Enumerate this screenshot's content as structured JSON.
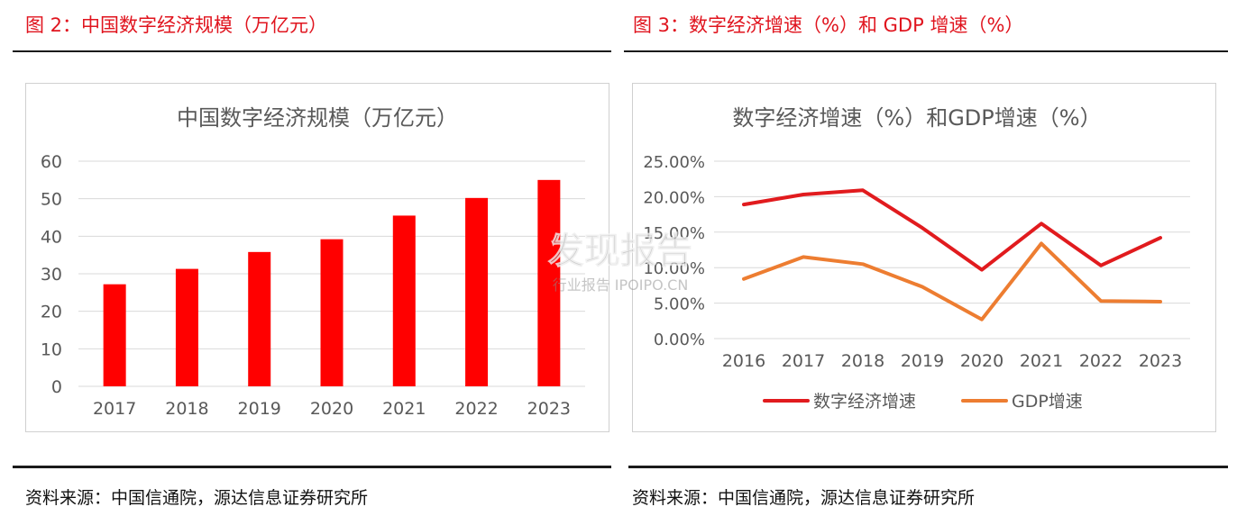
{
  "figures": [
    {
      "heading": "图 2：中国数字经济规模（万亿元）",
      "source": "资料来源：中国信通院，源达信息证券研究所"
    },
    {
      "heading": "图 3：数字经济增速（%）和 GDP 增速（%）",
      "source": "资料来源：中国信通院，源达信息证券研究所"
    }
  ],
  "watermark": {
    "main": "发现报告",
    "sub": "行业报告 IPOIPO.CN"
  },
  "colors": {
    "heading": "#e0141e",
    "bar": "#ff0000",
    "line_digital": "#e11b1e",
    "line_gdp": "#ed7d31",
    "grid": "#d9d9d9",
    "axis_text": "#595959"
  },
  "chart_data": [
    {
      "type": "bar",
      "title": "中国数字经济规模（万亿元）",
      "categories": [
        "2017",
        "2018",
        "2019",
        "2020",
        "2021",
        "2022",
        "2023"
      ],
      "values": [
        27.2,
        31.3,
        35.8,
        39.2,
        45.5,
        50.2,
        55.0
      ],
      "ylim": [
        0,
        60
      ],
      "yticks": [
        "0",
        "10",
        "20",
        "30",
        "40",
        "50",
        "60"
      ],
      "grid": true,
      "legend": "none"
    },
    {
      "type": "line",
      "title": "数字经济增速（%）和GDP增速（%）",
      "categories": [
        "2016",
        "2017",
        "2018",
        "2019",
        "2020",
        "2021",
        "2022",
        "2023"
      ],
      "series": [
        {
          "name": "数字经济增速",
          "values": [
            18.9,
            20.3,
            20.9,
            15.6,
            9.7,
            16.2,
            10.3,
            14.2
          ]
        },
        {
          "name": "GDP增速",
          "values": [
            8.4,
            11.5,
            10.5,
            7.3,
            2.7,
            13.4,
            5.3,
            5.2
          ]
        }
      ],
      "ylim": [
        0,
        25
      ],
      "yticks": [
        "0.00%",
        "5.00%",
        "10.00%",
        "15.00%",
        "20.00%",
        "25.00%"
      ],
      "grid": true,
      "legend": "bottom"
    }
  ]
}
